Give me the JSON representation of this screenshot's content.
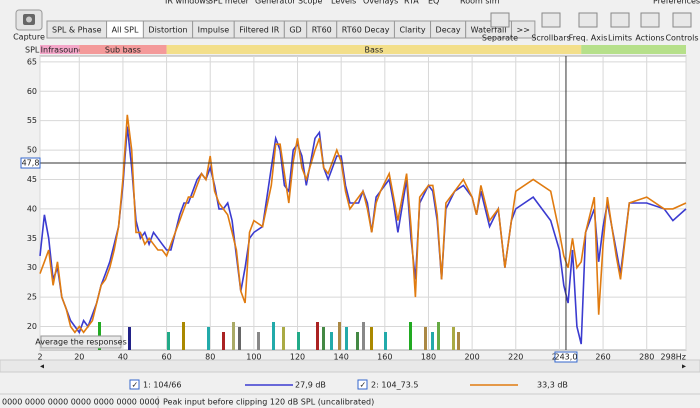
{
  "menu": [
    "IR windows",
    "SPL meter",
    "Generator",
    "Scope",
    "Levels",
    "Overlays",
    "RTA",
    "EQ",
    "Room sim",
    "Preferences"
  ],
  "toolbar": {
    "capture": "Capture",
    "tabs": [
      "SPL & Phase",
      "All SPL",
      "Distortion",
      "Impulse",
      "Filtered IR",
      "GD",
      "RT60",
      "RT60 Decay",
      "Clarity",
      "Decay",
      "Waterfall",
      ">>"
    ],
    "tools": [
      "Separate",
      "Scrollbars",
      "Freq. Axis",
      "Limits",
      "Actions",
      "Controls"
    ]
  },
  "bands": {
    "axis_label": "SPL",
    "items": [
      {
        "name": "Infrasound",
        "from": 2,
        "to": 20,
        "color": "#f4a6c8"
      },
      {
        "name": "Sub bass",
        "from": 20,
        "to": 60,
        "color": "#f49a9a"
      },
      {
        "name": "Bass",
        "from": 60,
        "to": 250,
        "color": "#f3df8a"
      },
      {
        "name": null,
        "from": 250,
        "to": 298,
        "color": "#b6e08a"
      }
    ]
  },
  "chart_data": {
    "type": "line",
    "x": [
      2,
      4,
      6,
      8,
      10,
      12,
      14,
      16,
      18,
      20,
      22,
      24,
      26,
      28,
      30,
      32,
      34,
      36,
      38,
      40,
      42,
      44,
      46,
      48,
      50,
      52,
      54,
      56,
      58,
      60,
      62,
      64,
      66,
      68,
      70,
      72,
      74,
      76,
      78,
      80,
      82,
      84,
      86,
      88,
      90,
      92,
      94,
      96,
      98,
      100,
      104,
      108,
      110,
      112,
      114,
      116,
      118,
      120,
      122,
      124,
      128,
      130,
      132,
      134,
      138,
      140,
      142,
      144,
      148,
      150,
      152,
      154,
      156,
      158,
      162,
      164,
      166,
      170,
      172,
      174,
      176,
      180,
      182,
      184,
      186,
      188,
      192,
      196,
      200,
      202,
      204,
      208,
      212,
      215,
      218,
      220,
      228,
      236,
      240,
      242,
      244,
      246,
      248,
      250,
      252,
      256,
      258,
      260,
      262,
      266,
      268,
      272,
      280,
      288,
      292,
      298
    ],
    "series": [
      {
        "name": "1: 104/66",
        "color": "#3b3bd0",
        "values": [
          32,
          39,
          35,
          28,
          30,
          25,
          23,
          21,
          20,
          19,
          21,
          20,
          22,
          24,
          27,
          29,
          31,
          34,
          37,
          44,
          54,
          47,
          38,
          35,
          36,
          34,
          36,
          35,
          34,
          33,
          33,
          36,
          39,
          41,
          41,
          43,
          45,
          46,
          45,
          47,
          44,
          40,
          40,
          41,
          38,
          32,
          26,
          30,
          35,
          36,
          37,
          47,
          52,
          50,
          44,
          43,
          50,
          51,
          49,
          44,
          52,
          53,
          47,
          45,
          49,
          49,
          44,
          41,
          41,
          43,
          41,
          36,
          42,
          43,
          45,
          41,
          36,
          45,
          35,
          28,
          41,
          44,
          43,
          38,
          28,
          40,
          43,
          44,
          42,
          39,
          43,
          37,
          40,
          30,
          38,
          40,
          42,
          38,
          33,
          27,
          24,
          33,
          20,
          17,
          36,
          40,
          31,
          37,
          41,
          33,
          29,
          41,
          41,
          40,
          38,
          40
        ]
      },
      {
        "name": "2: 104_73.5",
        "color": "#e07b10",
        "values": [
          29,
          31,
          33,
          27,
          31,
          25,
          23,
          20,
          19,
          20,
          19,
          20,
          21,
          24,
          27,
          28,
          30,
          33,
          37,
          45,
          56,
          50,
          36,
          36,
          34,
          35,
          34,
          33,
          33,
          32,
          34,
          36,
          38,
          40,
          42,
          42,
          44,
          46,
          45,
          49,
          43,
          41,
          40,
          39,
          36,
          33,
          26,
          24,
          36,
          38,
          37,
          44,
          51,
          51,
          46,
          41,
          48,
          52,
          47,
          45,
          50,
          52,
          47,
          46,
          50,
          48,
          43,
          40,
          42,
          43,
          40,
          36,
          41,
          43,
          46,
          42,
          38,
          46,
          37,
          25,
          42,
          44,
          44,
          39,
          28,
          41,
          43,
          45,
          42,
          39,
          44,
          38,
          40,
          30,
          38,
          43,
          45,
          43,
          36,
          32,
          30,
          35,
          30,
          31,
          36,
          42,
          22,
          34,
          42,
          32,
          28,
          41,
          42,
          40,
          40,
          41
        ]
      }
    ],
    "xlim": [
      2,
      298
    ],
    "xticks": [
      2,
      20,
      40,
      60,
      80,
      100,
      120,
      140,
      160,
      180,
      200,
      220,
      240,
      260,
      280,
      {
        "value": 298,
        "label": "298Hz"
      }
    ],
    "ylim": [
      16,
      66
    ],
    "yticks": [
      20,
      25,
      30,
      35,
      40,
      45,
      50,
      55,
      60,
      65
    ],
    "grid": true,
    "cursor": {
      "y": {
        "value": 47.8,
        "label": "47,8"
      },
      "x": {
        "value": 243,
        "label": "243,0"
      }
    }
  },
  "button": "Average the responses",
  "legend_readouts": [
    "27,9 dB",
    "33,3 dB"
  ],
  "status": {
    "left": "0000 0000 0000 0000 0000 0000 0000",
    "message": "Peak input before clipping 120 dB SPL (uncalibrated)"
  }
}
